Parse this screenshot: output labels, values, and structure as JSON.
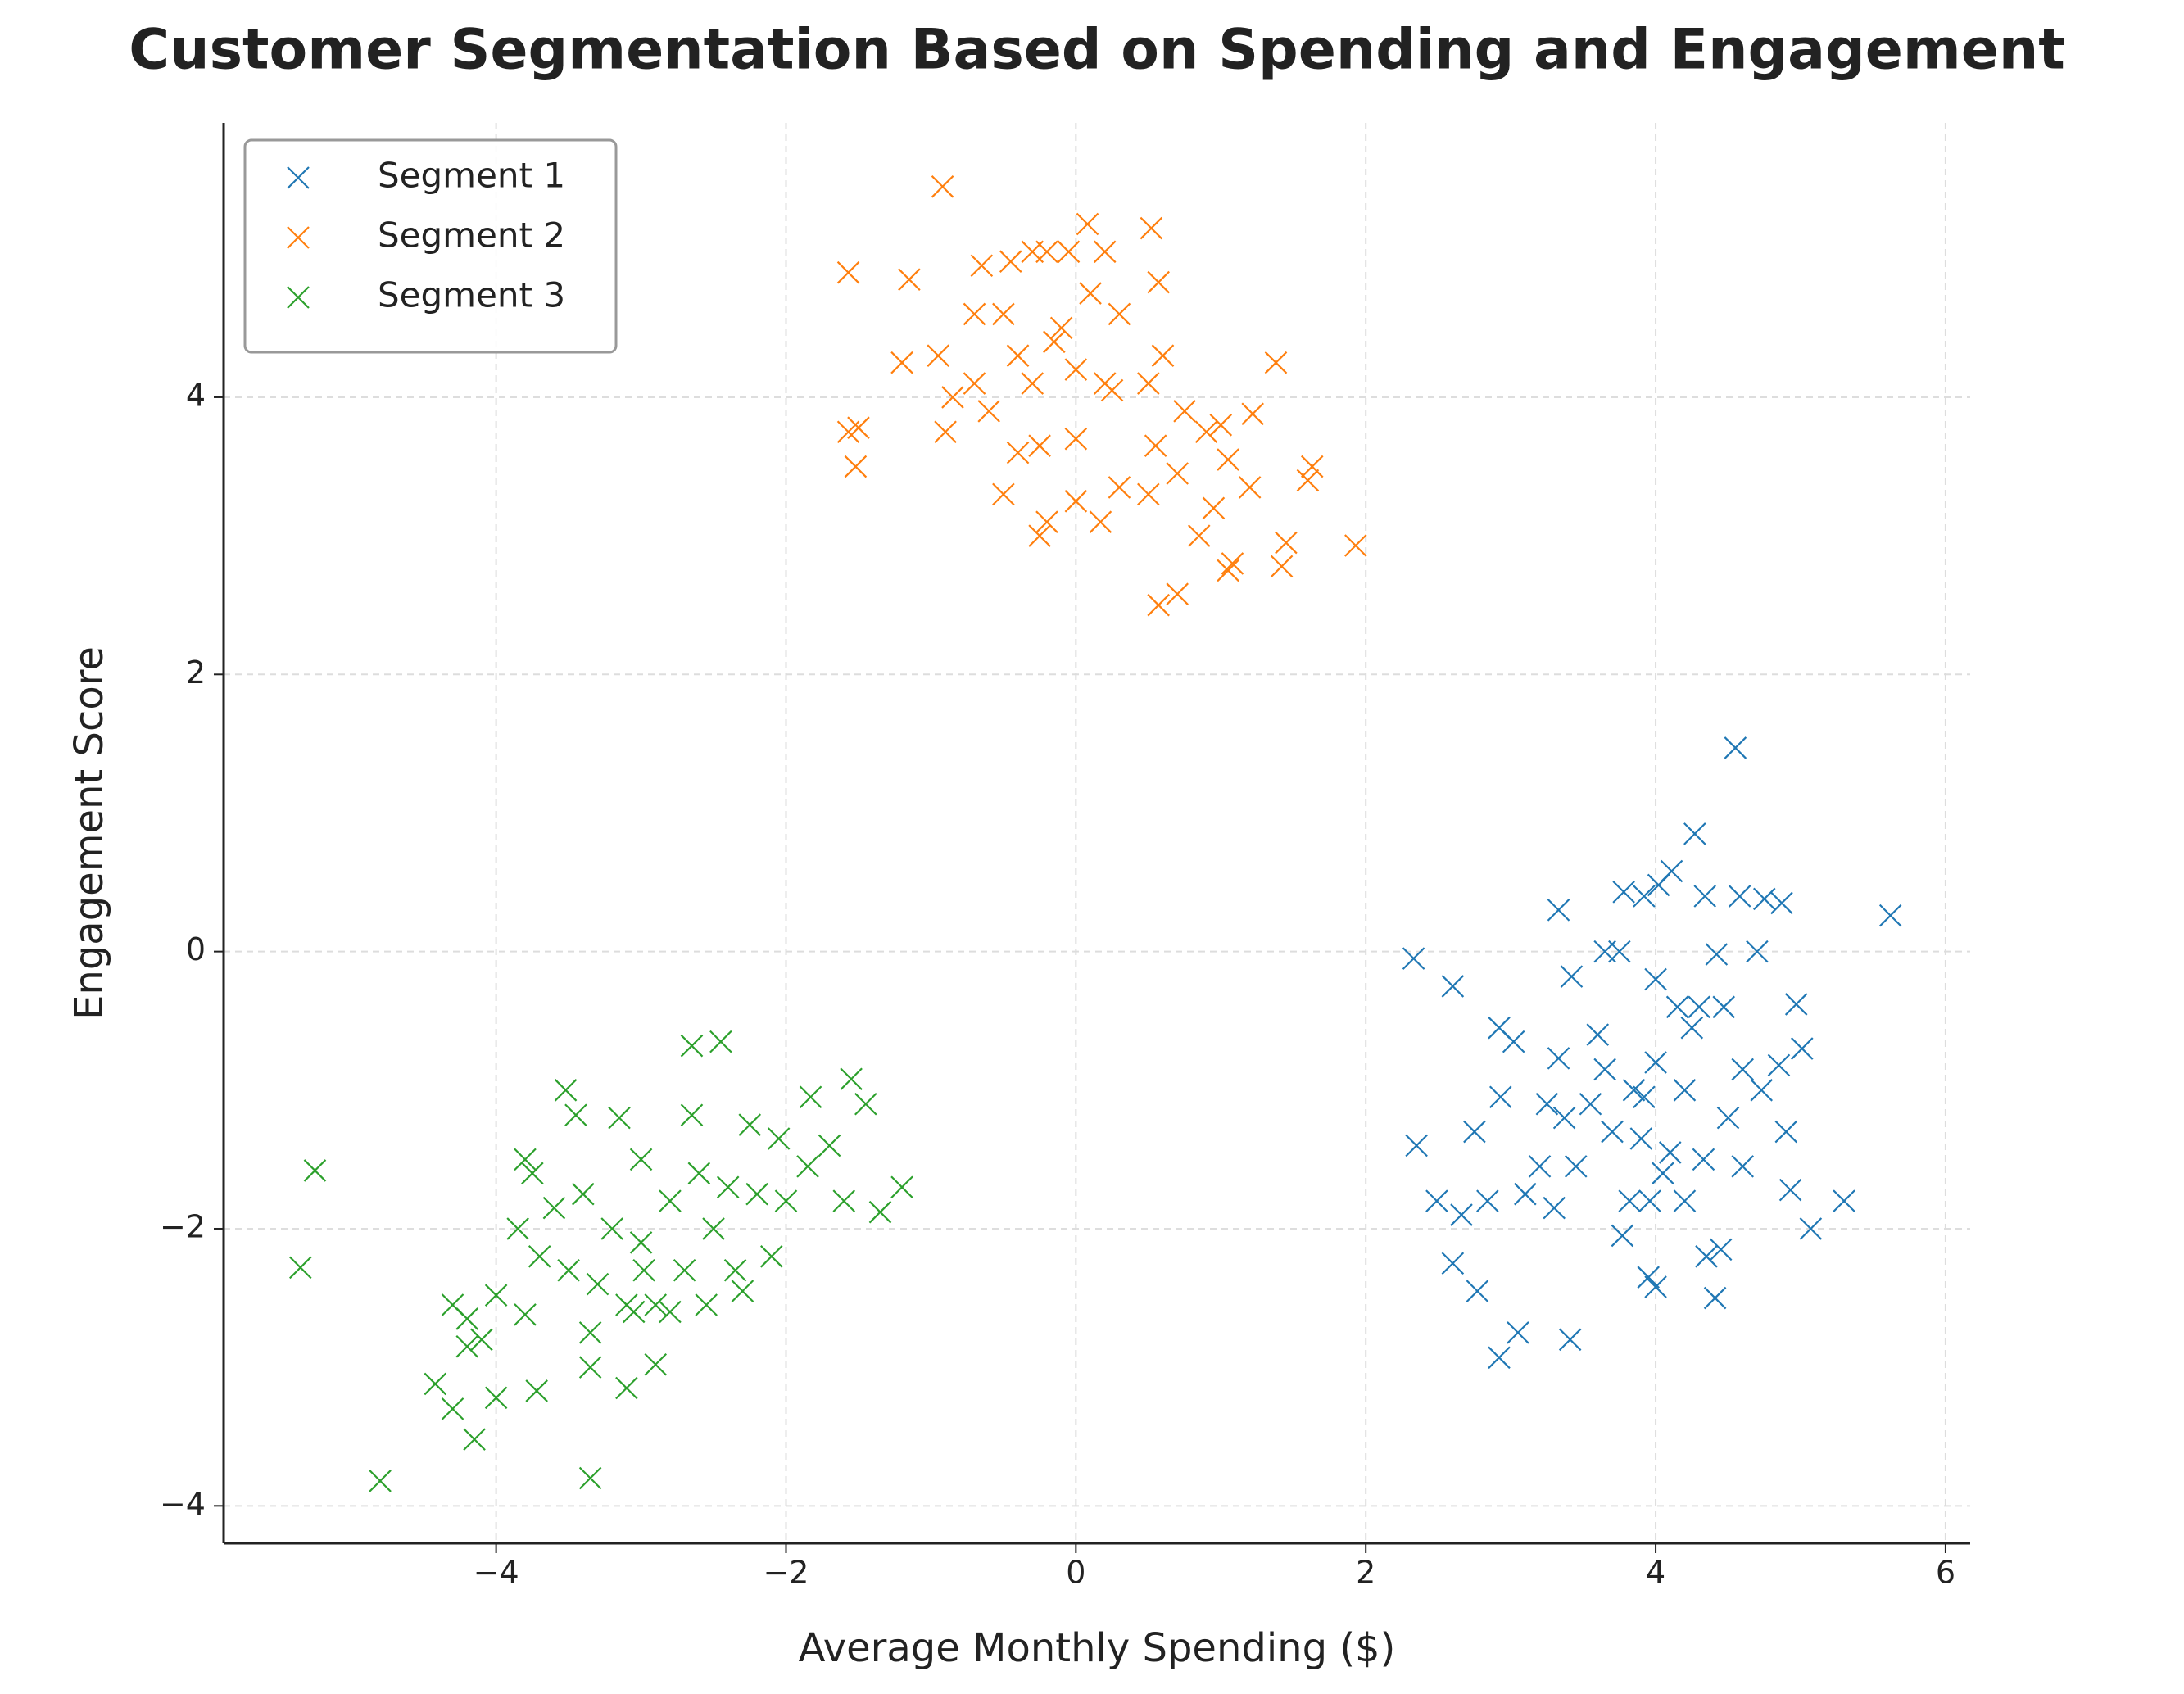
{
  "chart_data": {
    "type": "scatter",
    "title": "Customer Segmentation Based on Spending and Engagement",
    "xlabel": "Average Monthly Spending ($)",
    "ylabel": "Engagement Score",
    "xlim": [
      -5.88,
      6.17
    ],
    "ylim": [
      -4.27,
      5.98
    ],
    "xticks": [
      {
        "value": -4,
        "label": "−4"
      },
      {
        "value": -2,
        "label": "−2"
      },
      0,
      2,
      4,
      6
    ],
    "yticks": [
      {
        "value": -4,
        "label": "−4"
      },
      {
        "value": -2,
        "label": "−2"
      },
      0,
      2,
      4
    ],
    "grid": true,
    "legend": "upper left",
    "marker": "x",
    "series": [
      {
        "name": "Segment 1",
        "color": "#1f77b4",
        "x": [
          5.62,
          4.55,
          4.27,
          3.33,
          2.33,
          2.6,
          2.92,
          3.02,
          2.35,
          2.49,
          2.66,
          2.6,
          2.77,
          2.92,
          3.05,
          3.41,
          2.84,
          2.75,
          2.93,
          3.2,
          3.3,
          3.45,
          3.37,
          3.33,
          3.42,
          3.65,
          3.78,
          3.92,
          4.02,
          4.11,
          4.34,
          4.58,
          4.75,
          4.87,
          4.7,
          4.42,
          4.97,
          5.01,
          4.85,
          5.07,
          5.3,
          4.93,
          4.9,
          4.6,
          4.41,
          4.35,
          4.45,
          4.0,
          3.95,
          3.77,
          3.82,
          3.96,
          4.2,
          4.1,
          3.7,
          3.85,
          3.92,
          4.0,
          4.25,
          4.3,
          4.15,
          4.47,
          3.6,
          3.65,
          3.55,
          4.6,
          4.73,
          4.5,
          3.9,
          4.05,
          4.33,
          3.25,
          3.1,
          4.2,
          3.75,
          4.0
        ],
        "y": [
          0.26,
          1.47,
          0.85,
          0.3,
          -0.05,
          -0.25,
          -0.55,
          -0.65,
          -1.4,
          -1.8,
          -1.9,
          -2.25,
          -2.45,
          -2.93,
          -2.75,
          -2.8,
          -1.8,
          -1.3,
          -1.05,
          -1.55,
          -1.85,
          -1.55,
          -1.2,
          -0.77,
          -0.18,
          0,
          0.43,
          0.4,
          0.48,
          0.58,
          0.4,
          0.4,
          0.38,
          0.35,
          0,
          -0.02,
          -0.38,
          -0.7,
          -0.82,
          -2,
          -1.8,
          -1.72,
          -1.3,
          -1.55,
          -2.5,
          -2.2,
          -2.15,
          -2.42,
          -2.35,
          -2.05,
          -1.8,
          -1.8,
          -1.8,
          -1.45,
          -1.3,
          -1.0,
          -1.05,
          -0.8,
          -0.55,
          -0.4,
          -0.4,
          -0.4,
          -0.6,
          -0.85,
          -1.1,
          -0.85,
          -1.0,
          -1.2,
          -1.35,
          -1.6,
          -1.5,
          -1.1,
          -1.75,
          -1.0,
          0,
          -0.2
        ]
      },
      {
        "name": "Segment 2",
        "color": "#ff7f0e",
        "x": [
          -0.92,
          -1.57,
          0.08,
          0.52,
          -1.57,
          -1.5,
          -1.52,
          -1.15,
          -1.2,
          -0.95,
          -0.9,
          -0.65,
          -0.45,
          -0.3,
          -0.2,
          -0.05,
          0.2,
          0.57,
          1.38,
          1.22,
          1.0,
          1.05,
          1.2,
          1.6,
          1.63,
          1.93,
          1.45,
          1.42,
          1.08,
          1.05,
          0.7,
          0.57,
          0.85,
          0.95,
          0.7,
          0.5,
          0.3,
          0.17,
          0.0,
          -0.2,
          -0.25,
          -0.5,
          -0.4,
          -0.25,
          -0.6,
          -0.7,
          -0.4,
          -0.3,
          -0.15,
          0.0,
          0.2,
          0.25,
          0.5,
          0.6,
          0.75,
          0.3,
          0.1,
          -0.1,
          -0.5,
          -0.7,
          0.9,
          0.55,
          0.0,
          -0.85
        ],
        "y": [
          5.52,
          4.9,
          5.25,
          5.22,
          3.75,
          3.78,
          3.5,
          4.85,
          4.25,
          4.3,
          3.75,
          4.95,
          4.98,
          5.05,
          5.05,
          5.05,
          5.05,
          4.83,
          4.25,
          3.88,
          3.8,
          3.55,
          3.35,
          3.4,
          3.5,
          2.93,
          2.95,
          2.78,
          2.8,
          2.75,
          2.58,
          2.5,
          3.0,
          3.2,
          3.45,
          3.3,
          3.35,
          3.1,
          3.25,
          3.1,
          3.0,
          3.3,
          3.6,
          3.65,
          3.9,
          4.1,
          4.3,
          4.1,
          4.4,
          4.2,
          4.1,
          4.05,
          4.1,
          4.3,
          3.9,
          4.6,
          4.75,
          4.5,
          4.6,
          4.6,
          3.75,
          3.65,
          3.7,
          4.0
        ]
      },
      {
        "name": "Segment 3",
        "color": "#2ca02c",
        "x": [
          -5.25,
          -5.35,
          -4.8,
          -3.35,
          -4.15,
          -4.42,
          -4.3,
          -4.0,
          -3.72,
          -3.1,
          -3.35,
          -2.9,
          -4.2,
          -4.1,
          -4.2,
          -4.3,
          -4.0,
          -3.8,
          -3.35,
          -3.05,
          -2.8,
          -2.55,
          -2.3,
          -2.1,
          -2.7,
          -2.98,
          -3.3,
          -3.5,
          -3.7,
          -3.85,
          -3.6,
          -3.4,
          -3.2,
          -3.0,
          -2.8,
          -2.6,
          -2.4,
          -2.2,
          -2.0,
          -1.85,
          -1.7,
          -1.6,
          -1.55,
          -1.45,
          -1.83,
          -2.65,
          -2.45,
          -3.52,
          -3.45,
          -3.15,
          -2.65,
          -2.25,
          -2.05,
          -1.35,
          -1.2,
          -3.75,
          -3.8,
          -3.0,
          -2.9,
          -3.1,
          -2.5,
          -2.35
        ],
        "y": [
          -1.58,
          -2.28,
          -3.82,
          -3.8,
          -3.52,
          -3.12,
          -3.3,
          -3.22,
          -3.17,
          -3.15,
          -3.0,
          -2.98,
          -2.85,
          -2.8,
          -2.65,
          -2.55,
          -2.48,
          -2.62,
          -2.75,
          -2.6,
          -2.6,
          -2.55,
          -2.45,
          -2.2,
          -2.3,
          -2.3,
          -2.4,
          -2.3,
          -2.2,
          -2.0,
          -1.85,
          -1.75,
          -2.0,
          -2.1,
          -1.8,
          -1.6,
          -1.7,
          -1.75,
          -1.8,
          -1.55,
          -1.4,
          -1.8,
          -0.92,
          -1.1,
          -1.05,
          -0.68,
          -0.65,
          -1.0,
          -1.18,
          -1.2,
          -1.18,
          -1.25,
          -1.35,
          -1.88,
          -1.7,
          -1.6,
          -1.5,
          -1.5,
          -2.55,
          -2.55,
          -2.0,
          -2.3
        ]
      }
    ]
  }
}
